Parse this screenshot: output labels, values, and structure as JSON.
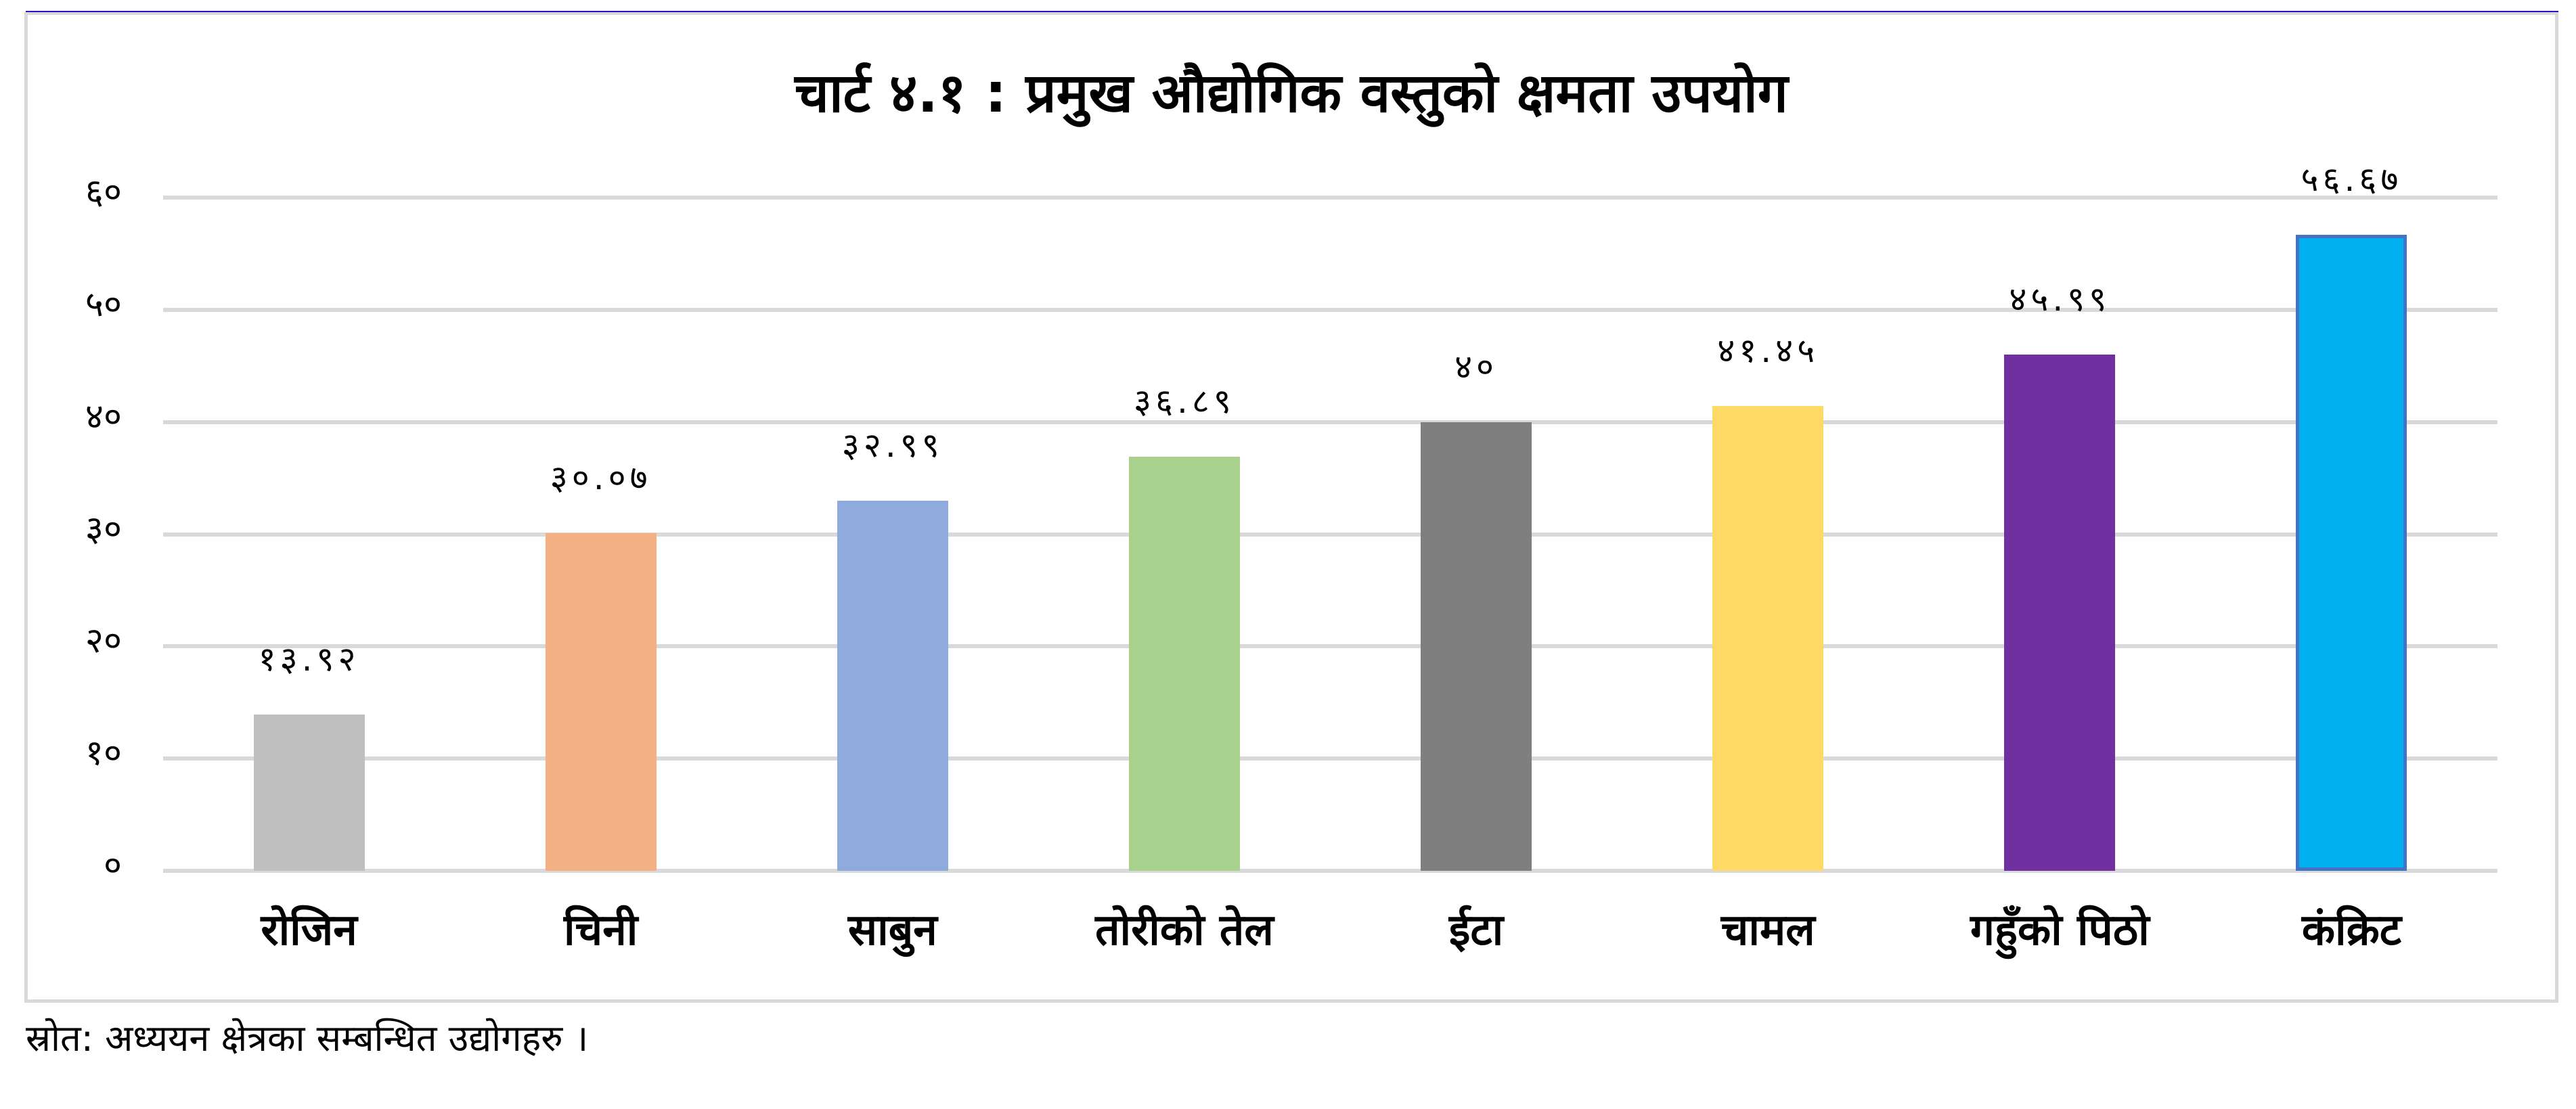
{
  "page": {
    "title": "चार्ट ४.१ : प्रमुख औद्योगिक वस्तुको क्षमता उपयोग",
    "source_note": "स्रोत: अध्ययन क्षेत्रका सम्बन्धित उद्योगहरु ।"
  },
  "axis": {
    "y_ticks": [
      {
        "value": 0,
        "label": "०"
      },
      {
        "value": 10,
        "label": "१०"
      },
      {
        "value": 20,
        "label": "२०"
      },
      {
        "value": 30,
        "label": "३०"
      },
      {
        "value": 40,
        "label": "४०"
      },
      {
        "value": 50,
        "label": "५०"
      },
      {
        "value": 60,
        "label": "६०"
      }
    ]
  },
  "bars": [
    {
      "category": "रोजिन",
      "value": 13.92,
      "label": "१३.९२",
      "color": "#BFBFBF",
      "outline": ""
    },
    {
      "category": "चिनी",
      "value": 30.07,
      "label": "३०.०७",
      "color": "#F4B183",
      "outline": ""
    },
    {
      "category": "साबुन",
      "value": 32.99,
      "label": "३२.९९",
      "color": "#8FAADC",
      "outline": ""
    },
    {
      "category": "तोरीको तेल",
      "value": 36.89,
      "label": "३६.८९",
      "color": "#A9D18E",
      "outline": ""
    },
    {
      "category": "ईटा",
      "value": 40,
      "label": "४०",
      "color": "#7F7F7F",
      "outline": ""
    },
    {
      "category": "चामल",
      "value": 41.45,
      "label": "४१.४५",
      "color": "#FFD966",
      "outline": ""
    },
    {
      "category": "गहुँको पिठो",
      "value": 45.99,
      "label": "४५.९९",
      "color": "#7030A0",
      "outline": ""
    },
    {
      "category": "कंक्रिट",
      "value": 56.67,
      "label": "५६.६७",
      "color": "#00B0F0",
      "outline": "#4472C4"
    }
  ],
  "colors": {
    "gridline": "#D9D9D9",
    "frame_border": "#D9D9D9",
    "top_rule": "#2A12C8"
  },
  "chart_data": {
    "type": "bar",
    "title": "चार्ट ४.१ : प्रमुख औद्योगिक वस्तुको क्षमता उपयोग",
    "categories": [
      "रोजिन",
      "चिनी",
      "साबुन",
      "तोरीको तेल",
      "ईटा",
      "चामल",
      "गहुँको पिठो",
      "कंक्रिट"
    ],
    "values": [
      13.92,
      30.07,
      32.99,
      36.89,
      40,
      41.45,
      45.99,
      56.67
    ],
    "data_labels": [
      "१३.९२",
      "३०.०७",
      "३२.९९",
      "३६.८९",
      "४०",
      "४१.४५",
      "४५.९९",
      "५६.६७"
    ],
    "colors": [
      "#BFBFBF",
      "#F4B183",
      "#8FAADC",
      "#A9D18E",
      "#7F7F7F",
      "#FFD966",
      "#7030A0",
      "#00B0F0"
    ],
    "xlabel": "",
    "ylabel": "",
    "ylim": [
      0,
      60
    ],
    "y_ticks": [
      "०",
      "१०",
      "२०",
      "३०",
      "४०",
      "५०",
      "६०"
    ],
    "grid": true,
    "legend": "none",
    "source": "स्रोत: अध्ययन क्षेत्रका सम्बन्धित उद्योगहरु ।"
  }
}
